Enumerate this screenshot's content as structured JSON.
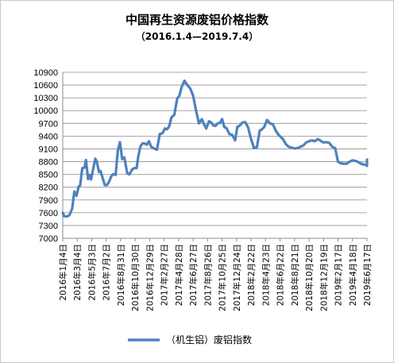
{
  "chart_data": {
    "type": "line",
    "title": "中国再生资源废铝价格指数",
    "subtitle": "（2016.1.4—2019.7.4）",
    "xlabel": "",
    "ylabel": "",
    "ylim": [
      7000,
      10900
    ],
    "yticks": [
      7000,
      7300,
      7600,
      7900,
      8200,
      8500,
      8800,
      9100,
      9400,
      9700,
      10000,
      10300,
      10600,
      10900
    ],
    "grid": true,
    "legend": "bottom",
    "categories": [
      "2016年1月4日",
      "2016年3月4日",
      "2016年5月3日",
      "2016年7月2日",
      "2016年8月31日",
      "2016年10月30日",
      "2016年12月29日",
      "2017年2月27日",
      "2017年4月28日",
      "2017年6月27日",
      "2017年8月26日",
      "2017年10月25日",
      "2017年12月24日",
      "2018年2月22日",
      "2018年4月23日",
      "2018年6月22日",
      "2018年8月21日",
      "2018年10月20日",
      "2018年12月19日",
      "2019年2月17日",
      "2019年4月18日",
      "2019年6月17日"
    ],
    "series": [
      {
        "name": "（机生铝）废铝指数",
        "color": "#4f81bd",
        "x": [
          0,
          0.1,
          0.25,
          0.45,
          0.65,
          0.8,
          0.95,
          1.1,
          1.2,
          1.35,
          1.5,
          1.6,
          1.75,
          1.85,
          1.95,
          2.1,
          2.25,
          2.35,
          2.5,
          2.6,
          2.75,
          2.9,
          3.05,
          3.2,
          3.35,
          3.5,
          3.65,
          3.8,
          3.95,
          4.1,
          4.25,
          4.45,
          4.6,
          4.8,
          4.95,
          5.1,
          5.2,
          5.35,
          5.5,
          5.65,
          5.8,
          5.95,
          6.1,
          6.3,
          6.5,
          6.7,
          6.9,
          7.05,
          7.2,
          7.35,
          7.5,
          7.7,
          7.9,
          8.05,
          8.2,
          8.4,
          8.6,
          8.8,
          9.0,
          9.2,
          9.4,
          9.6,
          9.75,
          9.9,
          10.1,
          10.25,
          10.4,
          10.55,
          10.7,
          10.85,
          11.0,
          11.15,
          11.3,
          11.5,
          11.7,
          11.9,
          12.05,
          12.2,
          12.4,
          12.6,
          12.8,
          13.0,
          13.2,
          13.4,
          13.6,
          13.75,
          13.9,
          14.1,
          14.3,
          14.5,
          14.7,
          14.9,
          15.05,
          15.2,
          15.4,
          15.6,
          15.8,
          16.0,
          16.2,
          16.4,
          16.6,
          16.8,
          17.0,
          17.2,
          17.4,
          17.6,
          17.8,
          18.0,
          18.2,
          18.4,
          18.6,
          18.8,
          19.0,
          19.2,
          19.4,
          19.6,
          19.8,
          20.0,
          20.2,
          20.4,
          20.6,
          20.8,
          21.0,
          21.15,
          21.3
        ],
        "values": [
          7600,
          7520,
          7510,
          7540,
          7700,
          8100,
          8000,
          8220,
          8240,
          8650,
          8660,
          8840,
          8390,
          8490,
          8380,
          8630,
          8870,
          8800,
          8560,
          8580,
          8420,
          8250,
          8250,
          8330,
          8460,
          8510,
          8490,
          9060,
          9260,
          8860,
          8900,
          8530,
          8500,
          8620,
          8650,
          8650,
          8890,
          9150,
          9230,
          9230,
          9200,
          9280,
          9150,
          9110,
          9080,
          9450,
          9470,
          9580,
          9560,
          9630,
          9840,
          9900,
          10280,
          10350,
          10550,
          10700,
          10600,
          10520,
          10350,
          10000,
          9700,
          9800,
          9680,
          9580,
          9750,
          9720,
          9650,
          9640,
          9700,
          9710,
          9800,
          9610,
          9590,
          9450,
          9430,
          9300,
          9620,
          9640,
          9720,
          9730,
          9600,
          9330,
          9120,
          9140,
          9530,
          9560,
          9610,
          9780,
          9700,
          9680,
          9530,
          9430,
          9380,
          9330,
          9210,
          9150,
          9130,
          9110,
          9120,
          9150,
          9180,
          9250,
          9280,
          9300,
          9280,
          9330,
          9290,
          9250,
          9260,
          9240,
          9150,
          9120,
          8800,
          8760,
          8750,
          8750,
          8800,
          8830,
          8820,
          8790,
          8750,
          8730,
          8720,
          8700,
          8850
        ]
      }
    ]
  }
}
